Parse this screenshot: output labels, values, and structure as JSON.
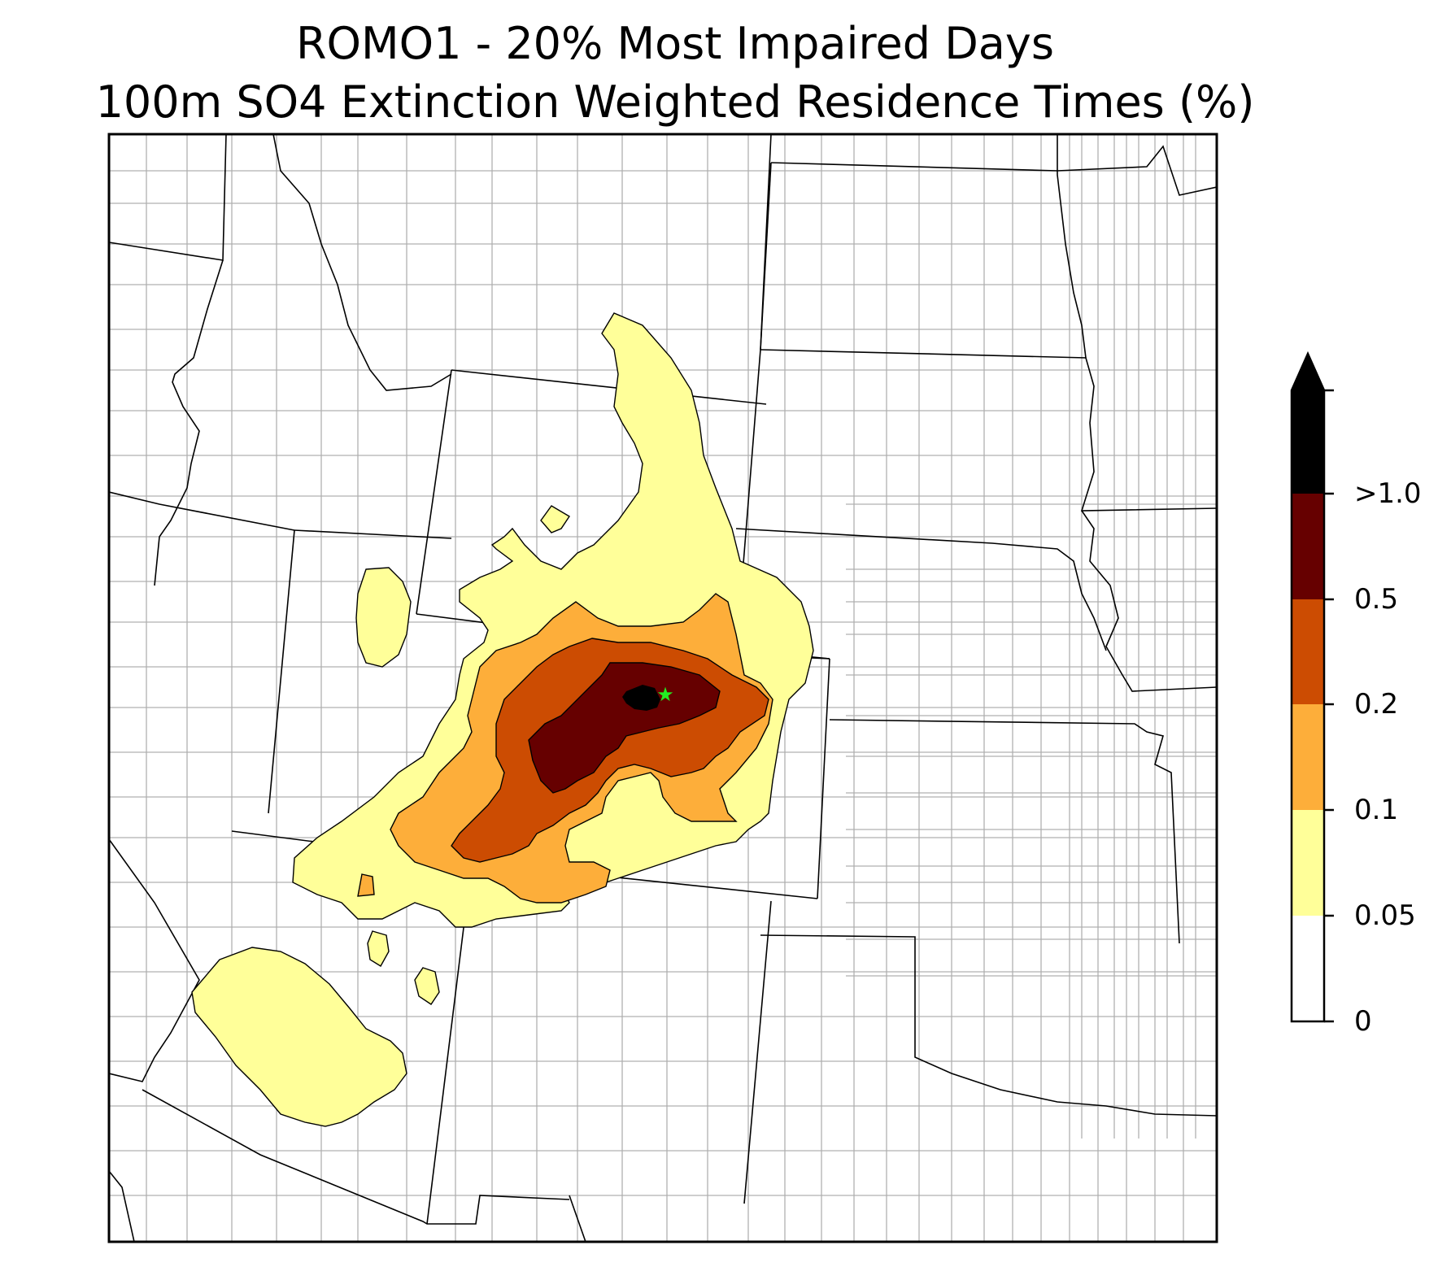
{
  "title": {
    "line1": "ROMO1 - 20% Most Impaired Days",
    "line2": "100m SO4 Extinction Weighted Residence Times (%)"
  },
  "colorbar": {
    "ticks": [
      {
        "label": "0",
        "value": 0
      },
      {
        "label": "0.05",
        "value": 0.05
      },
      {
        "label": "0.1",
        "value": 0.1
      },
      {
        "label": "0.2",
        "value": 0.2
      },
      {
        "label": "0.5",
        "value": 0.5
      },
      {
        "label": ">1.0",
        "value": 1.0
      }
    ],
    "bins": [
      {
        "range": "0-0.05",
        "color": "#ffffff"
      },
      {
        "range": "0.05-0.1",
        "color": "#ffff99"
      },
      {
        "range": "0.1-0.2",
        "color": "#fdae3a"
      },
      {
        "range": "0.2-0.5",
        "color": "#cc4c02"
      },
      {
        "range": "0.5-1.0",
        "color": "#660000"
      },
      {
        "range": ">1.0",
        "color": "#000000"
      }
    ],
    "extend": "max"
  },
  "map": {
    "receptor_marker": "green-star",
    "receptor_color": "#22ee22",
    "state_line_color": "#000000",
    "county_line_color": "#aaaaaa"
  }
}
